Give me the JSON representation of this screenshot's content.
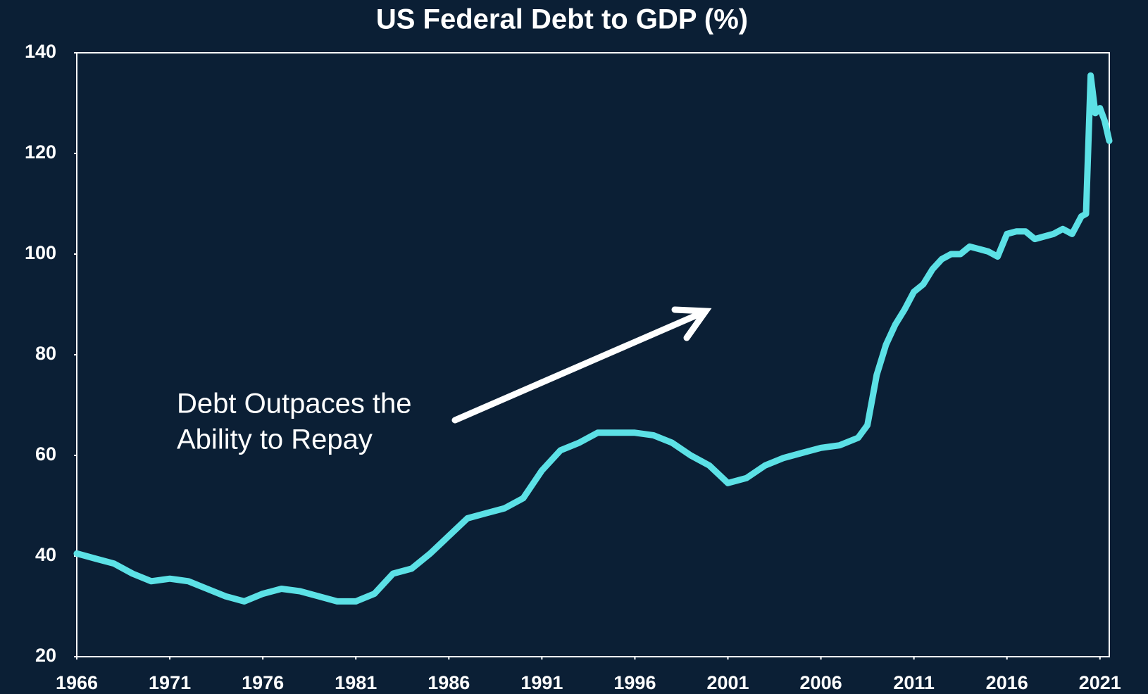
{
  "chart_data": {
    "type": "line",
    "title": "US Federal Debt to GDP (%)",
    "annotation": [
      "Debt Outpaces the",
      "Ability to Repay"
    ],
    "color": "#5ce1e6",
    "x": [
      1966,
      1967,
      1968,
      1969,
      1970,
      1971,
      1972,
      1973,
      1974,
      1975,
      1976,
      1977,
      1978,
      1979,
      1980,
      1981,
      1982,
      1983,
      1984,
      1985,
      1986,
      1987,
      1988,
      1989,
      1990,
      1991,
      1992,
      1993,
      1994,
      1995,
      1996,
      1997,
      1998,
      1999,
      2000,
      2001,
      2002,
      2003,
      2004,
      2005,
      2006,
      2007,
      2008,
      2008.5,
      2009,
      2009.5,
      2010,
      2010.5,
      2011,
      2011.5,
      2012,
      2012.5,
      2013,
      2013.5,
      2014,
      2014.5,
      2015,
      2015.5,
      2016,
      2016.5,
      2017,
      2017.5,
      2018,
      2018.5,
      2019,
      2019.5,
      2020,
      2020.25,
      2020.5,
      2020.75,
      2021,
      2021.25,
      2021.5
    ],
    "values": [
      40.5,
      39.5,
      38.5,
      36.5,
      35,
      35.5,
      35,
      33.5,
      32,
      31,
      32.5,
      33.5,
      33,
      32,
      31,
      31,
      32.5,
      36.5,
      37.5,
      40.5,
      44,
      47.5,
      48.5,
      49.5,
      51.5,
      57,
      61,
      62.5,
      64.5,
      64.5,
      64.5,
      64,
      62.5,
      60,
      58,
      54.5,
      55.5,
      58,
      59.5,
      60.5,
      61.5,
      62,
      63.5,
      66,
      76,
      82,
      86,
      89,
      92.5,
      94,
      97,
      99,
      100,
      100,
      101.5,
      101,
      100.5,
      99.5,
      104,
      104.5,
      104.5,
      103,
      103.5,
      104,
      105,
      104,
      107.5,
      108,
      135.5,
      128,
      129,
      126.5,
      122.5
    ],
    "xlim": [
      1966,
      2021.5
    ],
    "xticks": [
      1966,
      1971,
      1976,
      1981,
      1986,
      1991,
      1996,
      2001,
      2006,
      2011,
      2016,
      2021
    ],
    "ylim": [
      20,
      140
    ],
    "yticks": [
      20,
      40,
      60,
      80,
      100,
      120,
      140
    ],
    "grid": false
  }
}
